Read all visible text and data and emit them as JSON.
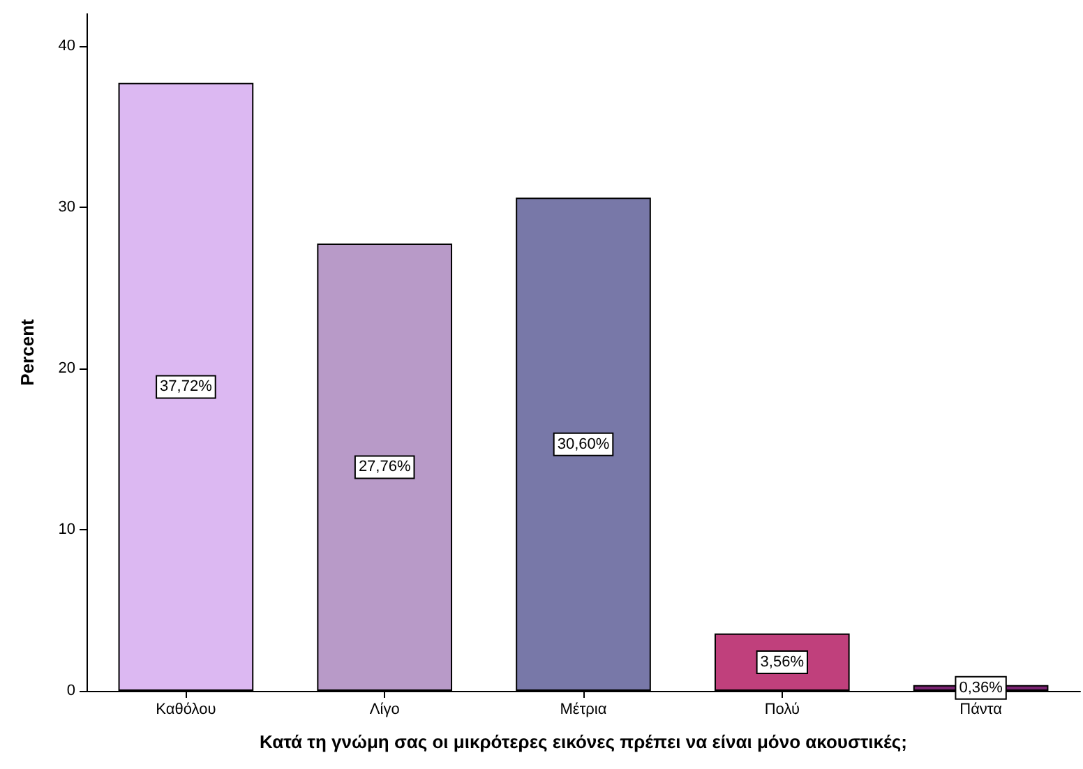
{
  "chart_data": {
    "type": "bar",
    "xlabel": "Κατά τη γνώμη σας οι μικρότερες εικόνες πρέπει να είναι μόνο ακουστικές;",
    "ylabel": "Percent",
    "categories": [
      "Καθόλου",
      "Λίγο",
      "Μέτρια",
      "Πολύ",
      "Πάντα"
    ],
    "values": [
      37.72,
      27.76,
      30.6,
      3.56,
      0.36
    ],
    "value_labels": [
      "37,72%",
      "27,76%",
      "30,60%",
      "3,56%",
      "0,36%"
    ],
    "colors": [
      "#dcb8f2",
      "#b89ac8",
      "#7878a8",
      "#c0407c",
      "#7a2472"
    ],
    "ylim": [
      0,
      42
    ],
    "yticks": [
      0,
      10,
      20,
      30,
      40
    ]
  }
}
